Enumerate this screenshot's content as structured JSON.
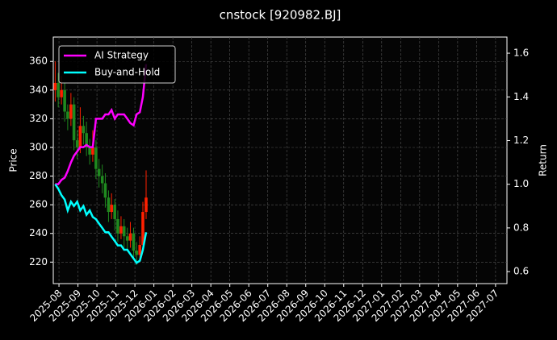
{
  "chart_data": {
    "type": "candlestick",
    "title": "cnstock [920982.BJ]",
    "ylabel": "Price",
    "y2label": "Return",
    "x": [
      -0.2,
      -0.04,
      0.13,
      0.3,
      0.46,
      0.63,
      0.79,
      0.96,
      1.12,
      1.29,
      1.45,
      1.62,
      1.78,
      1.95,
      2.11,
      2.28,
      2.44,
      2.61,
      2.77,
      2.94,
      3.1,
      3.27,
      3.43,
      3.6,
      3.76,
      3.93,
      4.09,
      4.26,
      4.42,
      4.59
    ],
    "open": [
      340,
      345,
      335,
      340,
      325,
      320,
      330,
      305,
      300,
      315,
      310,
      300,
      295,
      300,
      285,
      280,
      275,
      265,
      255,
      260,
      250,
      240,
      245,
      238,
      235,
      240,
      228,
      225,
      232,
      255
    ],
    "high": [
      360,
      352,
      350,
      345,
      330,
      338,
      335,
      312,
      328,
      322,
      318,
      306,
      312,
      305,
      292,
      288,
      282,
      270,
      268,
      264,
      256,
      252,
      250,
      244,
      248,
      244,
      234,
      238,
      262,
      284
    ],
    "low": [
      332,
      328,
      330,
      318,
      312,
      315,
      298,
      292,
      296,
      302,
      294,
      288,
      290,
      278,
      272,
      268,
      258,
      248,
      250,
      242,
      234,
      236,
      230,
      228,
      230,
      222,
      218,
      220,
      228,
      250
    ],
    "close": [
      345,
      335,
      340,
      325,
      320,
      330,
      305,
      300,
      315,
      310,
      300,
      295,
      300,
      285,
      280,
      275,
      265,
      255,
      260,
      250,
      240,
      245,
      238,
      235,
      240,
      228,
      225,
      232,
      255,
      265
    ],
    "up_color": "#ff2000",
    "down_color": "#1f8a1f",
    "series": [
      {
        "name": "AI Strategy",
        "color": "#ff00ff",
        "axis": "y2",
        "values": [
          1.0,
          1.0,
          1.02,
          1.03,
          1.06,
          1.1,
          1.13,
          1.15,
          1.17,
          1.17,
          1.18,
          1.17,
          1.17,
          1.3,
          1.3,
          1.3,
          1.32,
          1.32,
          1.34,
          1.3,
          1.32,
          1.32,
          1.32,
          1.3,
          1.28,
          1.27,
          1.32,
          1.33,
          1.4,
          1.55
        ]
      },
      {
        "name": "Buy-and-Hold",
        "color": "#00ffff",
        "axis": "y2",
        "values": [
          1.0,
          0.98,
          0.95,
          0.93,
          0.88,
          0.92,
          0.9,
          0.92,
          0.88,
          0.9,
          0.86,
          0.88,
          0.85,
          0.84,
          0.82,
          0.8,
          0.78,
          0.78,
          0.76,
          0.74,
          0.72,
          0.72,
          0.7,
          0.7,
          0.68,
          0.66,
          0.64,
          0.65,
          0.7,
          0.78
        ]
      }
    ],
    "xlim": [
      -0.3,
      23.6
    ],
    "xticks": [
      {
        "value": 0,
        "label": "2025-08"
      },
      {
        "value": 1,
        "label": "2025-09"
      },
      {
        "value": 2,
        "label": "2025-10"
      },
      {
        "value": 3,
        "label": "2025-11"
      },
      {
        "value": 4,
        "label": "2025-12"
      },
      {
        "value": 5,
        "label": "2026-01"
      },
      {
        "value": 6,
        "label": "2026-02"
      },
      {
        "value": 7,
        "label": "2026-03"
      },
      {
        "value": 8,
        "label": "2026-04"
      },
      {
        "value": 9,
        "label": "2026-05"
      },
      {
        "value": 10,
        "label": "2026-06"
      },
      {
        "value": 11,
        "label": "2026-07"
      },
      {
        "value": 12,
        "label": "2026-08"
      },
      {
        "value": 13,
        "label": "2026-09"
      },
      {
        "value": 14,
        "label": "2026-10"
      },
      {
        "value": 15,
        "label": "2026-11"
      },
      {
        "value": 16,
        "label": "2026-12"
      },
      {
        "value": 17,
        "label": "2027-01"
      },
      {
        "value": 18,
        "label": "2027-02"
      },
      {
        "value": 19,
        "label": "2027-03"
      },
      {
        "value": 20,
        "label": "2027-04"
      },
      {
        "value": 21,
        "label": "2027-05"
      },
      {
        "value": 22,
        "label": "2027-06"
      },
      {
        "value": 23,
        "label": "2027-07"
      }
    ],
    "ylim": [
      205,
      377
    ],
    "yticks": [
      220,
      240,
      260,
      280,
      300,
      320,
      340,
      360
    ],
    "y2lim": [
      0.545,
      1.674
    ],
    "y2ticks": [
      0.6,
      0.8,
      {
        "value": 1,
        "label": "1.0"
      },
      1.2,
      1.4,
      1.6
    ],
    "grid": true,
    "legend": "upper left"
  }
}
